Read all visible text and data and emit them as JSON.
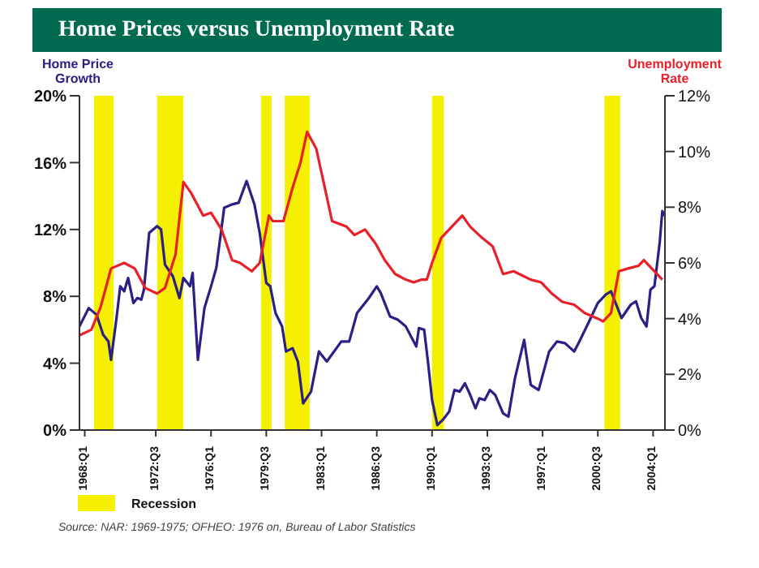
{
  "chart_data": {
    "type": "line",
    "title": "Home Prices versus Unemployment Rate",
    "ylabel": "Home Price Growth",
    "y2label": "Unemployment Rate",
    "annotations": [
      "Source: NAR: 1969-1975; OFHEO: 1976 on, Bureau of Labor Statistics"
    ],
    "xlim": [
      "1967-09",
      "2004-10"
    ],
    "xticks": [
      {
        "value": "1968-01",
        "label": "1968:Q1"
      },
      {
        "value": "1972-07",
        "label": "1972:Q3"
      },
      {
        "value": "1976-01",
        "label": "1976:Q1"
      },
      {
        "value": "1979-07",
        "label": "1979:Q3"
      },
      {
        "value": "1983-01",
        "label": "1983:Q1"
      },
      {
        "value": "1986-07",
        "label": "1986:Q3"
      },
      {
        "value": "1990-01",
        "label": "1990:Q1"
      },
      {
        "value": "1993-07",
        "label": "1993:Q3"
      },
      {
        "value": "1997-01",
        "label": "1997:Q1"
      },
      {
        "value": "2000-07",
        "label": "2000:Q3"
      },
      {
        "value": "2004-01",
        "label": "2004:Q1"
      }
    ],
    "ylim": [
      0,
      20
    ],
    "yticks": [
      {
        "value": 0,
        "label": "0%"
      },
      {
        "value": 4,
        "label": "4%"
      },
      {
        "value": 8,
        "label": "8%"
      },
      {
        "value": 12,
        "label": "12%"
      },
      {
        "value": 16,
        "label": "16%"
      },
      {
        "value": 20,
        "label": "20%"
      }
    ],
    "y2lim": [
      0,
      12
    ],
    "y2ticks": [
      {
        "value": 0,
        "label": "0%"
      },
      {
        "value": 2,
        "label": "2%"
      },
      {
        "value": 4,
        "label": "4%"
      },
      {
        "value": 6,
        "label": "6%"
      },
      {
        "value": 8,
        "label": "8%"
      },
      {
        "value": 10,
        "label": "10%"
      },
      {
        "value": 12,
        "label": "12%"
      }
    ],
    "legend": "bottom left",
    "bands": [
      {
        "axis": "x",
        "from": "1968-08",
        "to": "1969-11",
        "label": "Recession",
        "color": "#f5f000"
      },
      {
        "axis": "x",
        "from": "1972-08",
        "to": "1974-04",
        "color": "#f5f000"
      },
      {
        "axis": "x",
        "from": "1979-03",
        "to": "1979-11",
        "color": "#f5f000"
      },
      {
        "axis": "x",
        "from": "1980-09",
        "to": "1982-04",
        "color": "#f5f000"
      },
      {
        "axis": "x",
        "from": "1990-01",
        "to": "1990-10",
        "color": "#f5f000"
      },
      {
        "axis": "x",
        "from": "2000-12",
        "to": "2001-12",
        "color": "#f5f000"
      }
    ],
    "series": [
      {
        "color": "#2b2185",
        "x": [
          "1967-09",
          "1968-04",
          "1968-10",
          "1969-03",
          "1969-07",
          "1969-09",
          "1970-01",
          "1970-04",
          "1970-07",
          "1970-10",
          "1971-02",
          "1971-05",
          "1971-08",
          "1971-10",
          "1972-02",
          "1972-08",
          "1972-11",
          "1973-02",
          "1973-08",
          "1974-01",
          "1974-04",
          "1974-09",
          "1974-11",
          "1975-03",
          "1975-08",
          "1976-01",
          "1976-05",
          "1976-11",
          "1977-05",
          "1977-10",
          "1978-04",
          "1978-10",
          "1979-02",
          "1979-07",
          "1979-10",
          "1980-02",
          "1980-07",
          "1980-10",
          "1981-03",
          "1981-07",
          "1981-11",
          "1982-05",
          "1982-11",
          "1983-05",
          "1984-04",
          "1984-10",
          "1985-04",
          "1986-01",
          "1986-07",
          "1986-10",
          "1987-05",
          "1987-11",
          "1988-05",
          "1988-11",
          "1989-01",
          "1989-03",
          "1989-07",
          "1989-10",
          "1990-01",
          "1990-05",
          "1990-09",
          "1991-02",
          "1991-06",
          "1991-10",
          "1992-02",
          "1992-06",
          "1992-10",
          "1993-01",
          "1993-05",
          "1993-09",
          "1994-01",
          "1994-07",
          "1994-11",
          "1995-04",
          "1995-11",
          "1996-04",
          "1996-10",
          "1997-06",
          "1997-12",
          "1998-06",
          "1999-01",
          "1999-05",
          "2000-01",
          "2000-07",
          "2001-01",
          "2001-05",
          "2001-09",
          "2002-01",
          "2002-08",
          "2002-12",
          "2003-04",
          "2003-08",
          "2003-11",
          "2004-02",
          "2004-06",
          "2004-08",
          "2004-10"
        ],
        "values": [
          6.2,
          7.3,
          6.9,
          5.7,
          5.3,
          4.2,
          6.6,
          8.6,
          8.3,
          9.1,
          7.6,
          7.9,
          7.8,
          8.4,
          11.8,
          12.2,
          12.0,
          9.9,
          9.2,
          7.9,
          9.1,
          8.6,
          9.4,
          4.2,
          7.3,
          8.6,
          9.7,
          13.3,
          13.5,
          13.6,
          14.9,
          13.5,
          11.8,
          8.8,
          8.6,
          7.0,
          6.2,
          4.7,
          4.9,
          4.1,
          1.6,
          2.3,
          4.7,
          4.1,
          5.3,
          5.3,
          7.0,
          7.9,
          8.6,
          8.2,
          6.8,
          6.6,
          6.2,
          5.3,
          5.0,
          6.1,
          6.0,
          4.0,
          1.8,
          0.3,
          0.6,
          1.1,
          2.4,
          2.3,
          2.8,
          2.1,
          1.3,
          1.9,
          1.8,
          2.4,
          2.1,
          1.0,
          0.8,
          3.1,
          5.4,
          2.7,
          2.4,
          4.7,
          5.3,
          5.2,
          4.7,
          5.3,
          6.6,
          7.6,
          8.1,
          8.3,
          7.5,
          6.7,
          7.5,
          7.7,
          6.7,
          6.2,
          8.4,
          8.6,
          11.2,
          13.1,
          12.8
        ]
      },
      {
        "color": "#e8202a",
        "axis": "y2",
        "x": [
          "1967-09",
          "1968-06",
          "1969-01",
          "1969-09",
          "1970-07",
          "1971-03",
          "1971-11",
          "1972-08",
          "1973-02",
          "1973-10",
          "1974-04",
          "1974-10",
          "1975-07",
          "1976-01",
          "1976-09",
          "1977-05",
          "1977-11",
          "1978-08",
          "1979-02",
          "1979-09",
          "1979-12",
          "1980-08",
          "1981-03",
          "1981-09",
          "1982-02",
          "1982-09",
          "1983-03",
          "1983-09",
          "1984-08",
          "1985-02",
          "1985-10",
          "1986-06",
          "1987-01",
          "1987-09",
          "1988-05",
          "1988-11",
          "1989-05",
          "1989-09",
          "1990-01",
          "1990-08",
          "1991-02",
          "1991-12",
          "1992-06",
          "1993-03",
          "1993-11",
          "1994-07",
          "1995-03",
          "1996-04",
          "1996-12",
          "1997-08",
          "1998-04",
          "1999-01",
          "1999-09",
          "2000-07",
          "2000-11",
          "2001-05",
          "2001-11",
          "2002-06",
          "2003-02",
          "2003-06",
          "2003-12",
          "2004-08"
        ],
        "values": [
          3.4,
          3.6,
          4.4,
          5.8,
          6.0,
          5.8,
          5.1,
          4.9,
          5.1,
          6.3,
          8.9,
          8.5,
          7.7,
          7.8,
          7.2,
          6.1,
          6.0,
          5.7,
          6.0,
          7.7,
          7.5,
          7.5,
          8.7,
          9.6,
          10.7,
          10.1,
          8.8,
          7.5,
          7.3,
          7.0,
          7.2,
          6.7,
          6.1,
          5.6,
          5.4,
          5.3,
          5.4,
          5.4,
          6.0,
          6.9,
          7.2,
          7.7,
          7.3,
          6.9,
          6.6,
          5.6,
          5.7,
          5.4,
          5.3,
          4.9,
          4.6,
          4.5,
          4.2,
          4.0,
          3.9,
          4.2,
          5.7,
          5.8,
          5.9,
          6.1,
          5.8,
          5.4
        ]
      }
    ]
  }
}
